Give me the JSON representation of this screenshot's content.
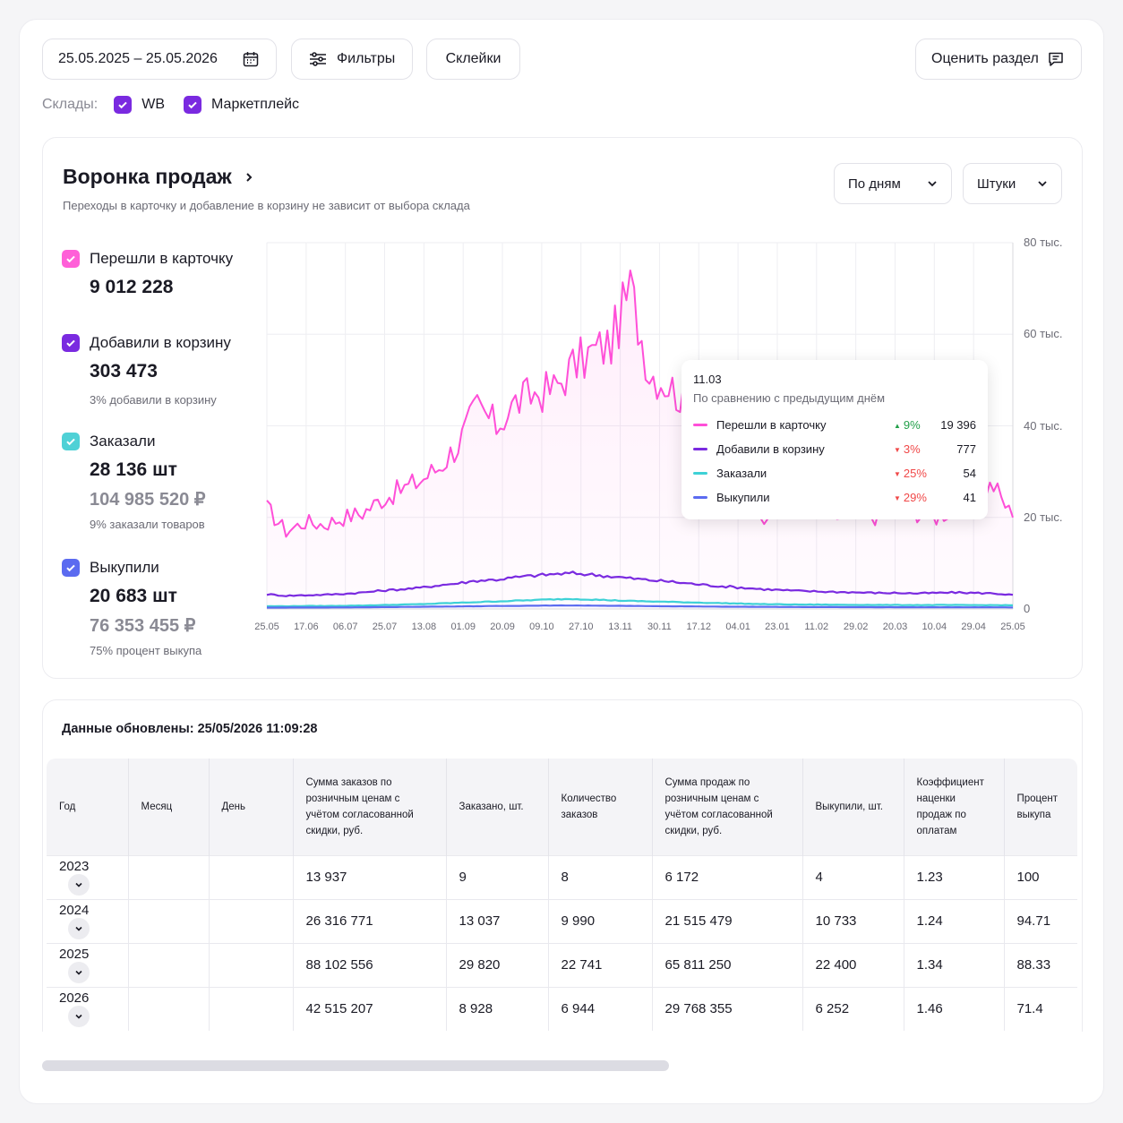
{
  "toolbar": {
    "date_range": "25.05.2025 – 25.05.2026",
    "filters_label": "Фильтры",
    "merges_label": "Склейки",
    "rate_label": "Оценить раздел"
  },
  "warehouses": {
    "label": "Склады:",
    "items": [
      {
        "label": "WB",
        "checked": true
      },
      {
        "label": "Маркетплейс",
        "checked": true
      }
    ]
  },
  "funnel": {
    "title": "Воронка продаж",
    "subtitle": "Переходы в карточку и добавление в корзину не зависит от выбора склада",
    "period_select": "По дням",
    "unit_select": "Штуки",
    "metrics": [
      {
        "label": "Перешли в карточку",
        "value": "9 012 228",
        "color": "#ff4fd8"
      },
      {
        "label": "Добавили в корзину",
        "value": "303 473",
        "note": "3% добавили в корзину",
        "color": "#7a2ae0"
      },
      {
        "label": "Заказали",
        "value": "28 136 шт",
        "money": "104 985 520 ₽",
        "note": "9% заказали товаров",
        "color": "#3ed1d6"
      },
      {
        "label": "Выкупили",
        "value": "20 683 шт",
        "money": "76 353 455 ₽",
        "note": "75% процент выкупа",
        "color": "#5b6bf0"
      }
    ]
  },
  "tooltip": {
    "date": "11.03",
    "caption": "По сравнению с предыдущим днём",
    "rows": [
      {
        "name": "Перешли в карточку",
        "pct": "9%",
        "dir": "up",
        "value": "19 396",
        "color": "#ff4fd8"
      },
      {
        "name": "Добавили в корзину",
        "pct": "3%",
        "dir": "down",
        "value": "777",
        "color": "#7a2ae0"
      },
      {
        "name": "Заказали",
        "pct": "25%",
        "dir": "down",
        "value": "54",
        "color": "#3ed1d6"
      },
      {
        "name": "Выкупили",
        "pct": "29%",
        "dir": "down",
        "value": "41",
        "color": "#5b6bf0"
      }
    ]
  },
  "chart_data": {
    "type": "line",
    "x_ticks": [
      "25.05",
      "17.06",
      "06.07",
      "25.07",
      "13.08",
      "01.09",
      "20.09",
      "09.10",
      "27.10",
      "13.11",
      "30.11",
      "17.12",
      "04.01",
      "23.01",
      "11.02",
      "29.02",
      "20.03",
      "10.04",
      "29.04",
      "25.05"
    ],
    "y_ticks": [
      "80 тыс.",
      "60 тыс.",
      "40 тыс.",
      "20 тыс.",
      "0"
    ],
    "ylim": [
      0,
      80000
    ],
    "series": [
      {
        "name": "Перешли в карточку",
        "color": "#ff4fd8",
        "values": [
          22000,
          17000,
          19000,
          18500,
          20000,
          21000,
          24000,
          26000,
          28000,
          31000,
          36000,
          44000,
          40000,
          45000,
          47000,
          48000,
          53000,
          56000,
          58000,
          70000,
          52000,
          49000,
          45000,
          42000,
          38000,
          30000,
          20000,
          24000,
          22000,
          21000,
          20000,
          21000,
          20000,
          22000,
          21000,
          20000,
          22000,
          25000,
          27000,
          20000
        ]
      },
      {
        "name": "Добавили в корзину",
        "color": "#7a2ae0",
        "values": [
          3200,
          2900,
          3000,
          3100,
          3300,
          3600,
          4000,
          4300,
          4600,
          5200,
          5600,
          6200,
          6400,
          6900,
          7300,
          7600,
          7800,
          7500,
          7100,
          6700,
          6300,
          6000,
          5600,
          5200,
          4900,
          4600,
          4300,
          4100,
          3900,
          3800,
          3700,
          3600,
          3500,
          3500,
          3400,
          3500,
          3600,
          3500,
          3400,
          3100
        ]
      },
      {
        "name": "Заказали",
        "color": "#3ed1d6",
        "values": [
          600,
          600,
          650,
          650,
          700,
          750,
          850,
          950,
          1050,
          1200,
          1350,
          1500,
          1650,
          1800,
          1950,
          2100,
          2200,
          2050,
          1900,
          1750,
          1650,
          1550,
          1450,
          1350,
          1250,
          1150,
          1050,
          1000,
          950,
          950,
          900,
          900,
          880,
          860,
          860,
          860,
          850,
          850,
          840,
          800
        ]
      },
      {
        "name": "Выкупили",
        "color": "#5b6bf0",
        "values": [
          300,
          300,
          320,
          320,
          340,
          360,
          400,
          440,
          480,
          520,
          560,
          600,
          640,
          680,
          720,
          750,
          760,
          730,
          700,
          660,
          620,
          590,
          560,
          530,
          500,
          480,
          460,
          440,
          420,
          410,
          400,
          390,
          380,
          375,
          370,
          370,
          365,
          360,
          355,
          340
        ]
      }
    ]
  },
  "table": {
    "updated": "Данные обновлены: 25/05/2026 11:09:28",
    "headers": [
      "Год",
      "Месяц",
      "День",
      "Сумма заказов по розничным ценам с учётом согласованной скидки, руб.",
      "Заказано, шт.",
      "Количество заказов",
      "Сумма продаж по розничным ценам с учётом согласованной скидки, руб.",
      "Выкупили, шт.",
      "Коэффициент наценки продаж по оплатам",
      "Процент выкупа"
    ],
    "rows": [
      [
        "2023",
        "",
        "",
        "13 937",
        "9",
        "8",
        "6 172",
        "4",
        "1.23",
        "100"
      ],
      [
        "2024",
        "",
        "",
        "26 316 771",
        "13 037",
        "9 990",
        "21 515 479",
        "10 733",
        "1.24",
        "94.71"
      ],
      [
        "2025",
        "",
        "",
        "88 102 556",
        "29 820",
        "22 741",
        "65 811 250",
        "22 400",
        "1.34",
        "88.33"
      ],
      [
        "2026",
        "",
        "",
        "42 515 207",
        "8 928",
        "6 944",
        "29 768 355",
        "6 252",
        "1.46",
        "71.4"
      ]
    ]
  }
}
